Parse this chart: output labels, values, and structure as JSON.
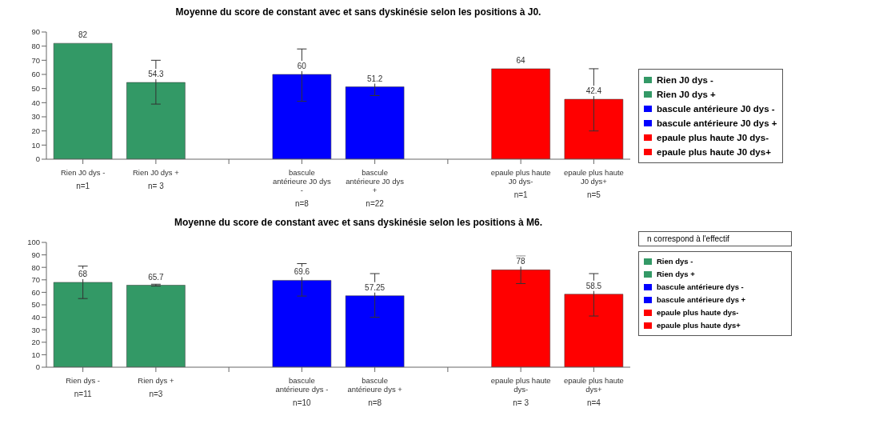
{
  "chart_data": [
    {
      "type": "bar",
      "title": "Moyenne du score de constant avec et sans dyskinésie selon les positions à J0.",
      "categories": [
        "Rien J0 dys -",
        "Rien J0 dys +",
        null,
        "bascule antérieure J0 dys -",
        "bascule antérieure J0 dys +",
        null,
        "epaule plus haute J0 dys-",
        "epaule plus haute J0 dys+"
      ],
      "series": [
        {
          "name": "Rien J0 dys -",
          "color": "#339966",
          "values": [
            82,
            null,
            null,
            null,
            null,
            null,
            null,
            null
          ],
          "errors": [
            null,
            null,
            null,
            null,
            null,
            null,
            null,
            null
          ]
        },
        {
          "name": "Rien J0 dys +",
          "color": "#339966",
          "values": [
            null,
            54.3,
            null,
            null,
            null,
            null,
            null,
            null
          ],
          "errors": [
            null,
            [
              39,
              70
            ],
            null,
            null,
            null,
            null,
            null,
            null
          ]
        },
        {
          "name": "bascule antérieure J0 dys -",
          "color": "#0000ff",
          "values": [
            null,
            null,
            null,
            60,
            null,
            null,
            null,
            null
          ],
          "errors": [
            null,
            null,
            null,
            [
              41,
              78
            ],
            null,
            null,
            null,
            null
          ]
        },
        {
          "name": "bascule antérieure J0 dys +",
          "color": "#0000ff",
          "values": [
            null,
            null,
            null,
            null,
            51.2,
            null,
            null,
            null
          ],
          "errors": [
            null,
            null,
            null,
            null,
            [
              45,
              59
            ],
            null,
            null,
            null
          ]
        },
        {
          "name": "epaule plus haute J0 dys-",
          "color": "#ff0000",
          "values": [
            null,
            null,
            null,
            null,
            null,
            null,
            64,
            null
          ],
          "errors": [
            null,
            null,
            null,
            null,
            null,
            null,
            null,
            null
          ]
        },
        {
          "name": "epaule plus haute J0 dys+",
          "color": "#ff0000",
          "values": [
            null,
            null,
            null,
            null,
            null,
            null,
            null,
            42.4
          ],
          "errors": [
            null,
            null,
            null,
            null,
            null,
            null,
            null,
            [
              20,
              64
            ]
          ]
        }
      ],
      "ylim": [
        0,
        90
      ],
      "yticks": [
        0,
        10,
        20,
        30,
        40,
        50,
        60,
        70,
        80,
        90
      ],
      "grid": false,
      "legend": "right",
      "data_labels": true,
      "annotations": [
        "n=1",
        "n= 3",
        "n=8",
        "n=22",
        "n=1",
        "n=5"
      ]
    },
    {
      "type": "bar",
      "title": "Moyenne du score de constant avec et sans dyskinésie selon les positions à M6.",
      "categories": [
        "Rien dys -",
        "Rien dys +",
        null,
        "bascule antérieure dys -",
        "bascule antérieure dys +",
        null,
        "epaule plus haute dys-",
        "epaule plus haute dys+"
      ],
      "series": [
        {
          "name": "Rien dys -",
          "color": "#339966",
          "values": [
            68,
            null,
            null,
            null,
            null,
            null,
            null,
            null
          ],
          "errors": [
            [
              55,
              81
            ],
            null,
            null,
            null,
            null,
            null,
            null,
            null
          ]
        },
        {
          "name": "Rien dys +",
          "color": "#339966",
          "values": [
            null,
            65.7,
            null,
            null,
            null,
            null,
            null,
            null
          ],
          "errors": [
            null,
            [
              65,
              66.5
            ],
            null,
            null,
            null,
            null,
            null,
            null
          ]
        },
        {
          "name": "bascule antérieure dys -",
          "color": "#0000ff",
          "values": [
            null,
            null,
            null,
            69.6,
            null,
            null,
            null,
            null
          ],
          "errors": [
            null,
            null,
            null,
            [
              57,
              83
            ],
            null,
            null,
            null,
            null
          ]
        },
        {
          "name": "bascule antérieure dys +",
          "color": "#0000ff",
          "values": [
            null,
            null,
            null,
            null,
            57.25,
            null,
            null,
            null
          ],
          "errors": [
            null,
            null,
            null,
            null,
            [
              40,
              75
            ],
            null,
            null,
            null
          ]
        },
        {
          "name": "epaule plus haute dys-",
          "color": "#ff0000",
          "values": [
            null,
            null,
            null,
            null,
            null,
            null,
            78,
            null
          ],
          "errors": [
            null,
            null,
            null,
            null,
            null,
            null,
            [
              67,
              89
            ],
            null
          ]
        },
        {
          "name": "epaule plus haute dys+",
          "color": "#ff0000",
          "values": [
            null,
            null,
            null,
            null,
            null,
            null,
            null,
            58.5
          ],
          "errors": [
            null,
            null,
            null,
            null,
            null,
            null,
            null,
            [
              41,
              75
            ]
          ]
        }
      ],
      "ylim": [
        0,
        100
      ],
      "yticks": [
        0,
        10,
        20,
        30,
        40,
        50,
        60,
        70,
        80,
        90,
        100
      ],
      "grid": false,
      "legend": "right",
      "data_labels": true,
      "annotations": [
        "n=11",
        "n=3",
        "n=10",
        "n=8",
        "n= 3",
        "n=4",
        "n correspond à l'effectif"
      ]
    }
  ]
}
